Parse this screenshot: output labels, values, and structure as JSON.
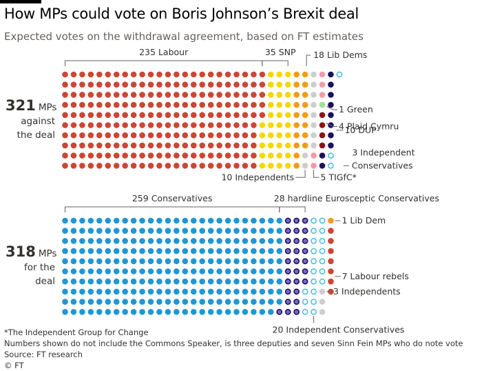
{
  "title": "How MPs could vote on Boris Johnson’s Brexit deal",
  "subtitle": "Expected votes on the withdrawal agreement, based on FT estimates",
  "footer": {
    "note": "*The Independent Group for Change",
    "disclaimer": "Numbers shown do not include the Commons Speaker, is three deputies and seven Sinn Fein MPs who do note vote",
    "source": "Source: FT research",
    "copyright": "© FT"
  },
  "colors": {
    "labour": "#cc4634",
    "snp": "#f5d800",
    "lib_dem": "#f39c12",
    "independent": "#cecece",
    "tigfc": "#f19bab",
    "green": "#9be29b",
    "plaid": "#8b1414",
    "dup": "#1a125e",
    "conservative": "#2196d3",
    "hardline_fill": "#7b68c9",
    "hardline_stroke": "#1a125e",
    "ind_con_ring": "#4fbde1",
    "text": "#33302e",
    "line": "#66605c"
  },
  "chart_data": {
    "type": "dot-matrix",
    "groups": [
      {
        "name": "against",
        "total_text": "321",
        "total_unit": "MPs",
        "caption_lines": [
          "against",
          "the deal"
        ],
        "total": 321,
        "parties": [
          {
            "key": "labour",
            "label": "235 Labour",
            "count": 235,
            "fill": "labour"
          },
          {
            "key": "snp",
            "label": "35 SNP",
            "count": 35,
            "fill": "snp"
          },
          {
            "key": "lib_dem",
            "label": "18 Lib Dems",
            "count": 18,
            "fill": "lib_dem"
          },
          {
            "key": "independents",
            "label": "10 Independents",
            "count": 10,
            "fill": "independent"
          },
          {
            "key": "tigfc",
            "label": "5 TIGfC*",
            "count": 5,
            "fill": "tigfc"
          },
          {
            "key": "green",
            "label": "1 Green",
            "count": 1,
            "fill": "green"
          },
          {
            "key": "plaid",
            "label": "4 Plaid Cymru",
            "count": 4,
            "fill": "plaid"
          },
          {
            "key": "dup",
            "label": "10 DUP",
            "count": 10,
            "fill": "dup"
          },
          {
            "key": "ind_con",
            "label_lines": [
              "3 Independent",
              "Conservatives"
            ],
            "count": 3,
            "fill": "white",
            "ring": "ind_con_ring"
          }
        ]
      },
      {
        "name": "for",
        "total_text": "318",
        "total_unit": "MPs",
        "caption_lines": [
          "for the",
          "deal"
        ],
        "total": 318,
        "parties": [
          {
            "key": "conservatives",
            "label": "259 Conservatives",
            "count": 259,
            "fill": "conservative"
          },
          {
            "key": "hardline",
            "label": "28 hardline Eurosceptic Conservatives",
            "count": 28,
            "fill": "hardline_fill",
            "ring": "hardline_stroke"
          },
          {
            "key": "ind_con",
            "label": "20 Independent Conservatives",
            "count": 20,
            "fill": "white",
            "ring": "ind_con_ring"
          },
          {
            "key": "independents",
            "label": "3 Independents",
            "count": 3,
            "fill": "independent"
          },
          {
            "key": "lib_dem",
            "label": "1 Lib Dem",
            "count": 1,
            "fill": "lib_dem"
          },
          {
            "key": "labour",
            "label": "7 Labour rebels",
            "count": 7,
            "fill": "labour"
          }
        ]
      }
    ]
  }
}
